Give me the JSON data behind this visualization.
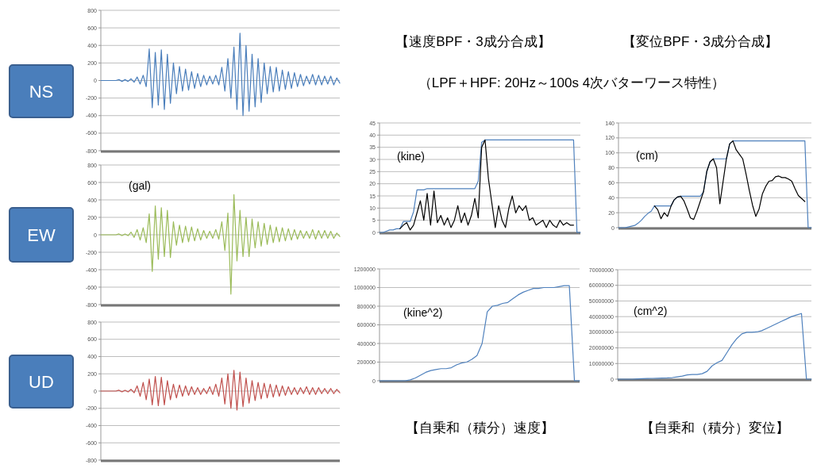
{
  "chart_data": [
    {
      "type": "line",
      "title": "NS",
      "categories": [
        null,
        null,
        null,
        null,
        null,
        null,
        null,
        null,
        null,
        null,
        null,
        null,
        null,
        null,
        null,
        null,
        null,
        null,
        null,
        null,
        null,
        null,
        null,
        null,
        null,
        null,
        null,
        null,
        null,
        null,
        null,
        null,
        null,
        null,
        null,
        null,
        null,
        null,
        null,
        null,
        null,
        null,
        null,
        null,
        null,
        null,
        null,
        null,
        null,
        null,
        null,
        null,
        null,
        null,
        null,
        null,
        null,
        null,
        null,
        null,
        null,
        null,
        null,
        null,
        null,
        null,
        null,
        null,
        null,
        null,
        null,
        null,
        null,
        null,
        null,
        null,
        null,
        null,
        null,
        null
      ],
      "ylim": [
        -800,
        800
      ],
      "yticks": [
        -800,
        -600,
        -400,
        -200,
        0,
        200,
        400,
        600,
        800
      ],
      "grid": "y",
      "tick_labels": "y",
      "series": [
        {
          "color": "#4a7ebb",
          "values": [
            0,
            0,
            0,
            0,
            0,
            0,
            10,
            -10,
            10,
            -10,
            20,
            -20,
            40,
            -40,
            60,
            -70,
            360,
            -310,
            320,
            -280,
            350,
            -330,
            300,
            -260,
            200,
            -150,
            160,
            -120,
            130,
            -110,
            100,
            -90,
            80,
            -70,
            60,
            -50,
            50,
            -40,
            60,
            -50,
            150,
            -120,
            250,
            -200,
            380,
            -330,
            540,
            -400,
            400,
            -350,
            300,
            -300,
            250,
            -250,
            200,
            -150,
            160,
            -130,
            150,
            -120,
            120,
            -100,
            100,
            -90,
            90,
            -70,
            70,
            -60,
            50,
            -40,
            70,
            -50,
            60,
            -50,
            50,
            -40,
            50,
            -50,
            30,
            -30
          ]
        }
      ]
    },
    {
      "type": "line",
      "title": "EW",
      "annotations": [
        "(gal)"
      ],
      "categories": [
        null,
        null,
        null,
        null,
        null,
        null,
        null,
        null,
        null,
        null,
        null,
        null,
        null,
        null,
        null,
        null,
        null,
        null,
        null,
        null,
        null,
        null,
        null,
        null,
        null,
        null,
        null,
        null,
        null,
        null,
        null,
        null,
        null,
        null,
        null,
        null,
        null,
        null,
        null,
        null,
        null,
        null,
        null,
        null,
        null,
        null,
        null,
        null,
        null,
        null,
        null,
        null,
        null,
        null,
        null,
        null,
        null,
        null,
        null,
        null,
        null,
        null,
        null,
        null,
        null,
        null,
        null,
        null,
        null,
        null,
        null,
        null,
        null,
        null,
        null,
        null,
        null,
        null,
        null,
        null
      ],
      "ylim": [
        -800,
        800
      ],
      "yticks": [
        -800,
        -600,
        -400,
        -200,
        0,
        200,
        400,
        600,
        800
      ],
      "grid": "y",
      "tick_labels": "y",
      "series": [
        {
          "color": "#9bbb59",
          "values": [
            0,
            0,
            0,
            0,
            0,
            0,
            10,
            -10,
            10,
            -10,
            30,
            -30,
            60,
            -60,
            80,
            -90,
            240,
            -420,
            330,
            -280,
            310,
            -250,
            280,
            -260,
            150,
            -120,
            110,
            -90,
            100,
            -80,
            90,
            -70,
            70,
            -60,
            50,
            -40,
            40,
            -40,
            60,
            -50,
            150,
            -180,
            250,
            -680,
            460,
            -300,
            280,
            -250,
            200,
            -250,
            180,
            -150,
            150,
            -130,
            130,
            -110,
            110,
            -90,
            90,
            -80,
            80,
            -70,
            70,
            -60,
            60,
            -50,
            50,
            -40,
            40,
            -40,
            60,
            -50,
            50,
            -40,
            50,
            -40,
            40,
            -40,
            20,
            -20
          ]
        }
      ]
    },
    {
      "type": "line",
      "title": "UD",
      "categories": [
        null,
        null,
        null,
        null,
        null,
        null,
        null,
        null,
        null,
        null,
        null,
        null,
        null,
        null,
        null,
        null,
        null,
        null,
        null,
        null,
        null,
        null,
        null,
        null,
        null,
        null,
        null,
        null,
        null,
        null,
        null,
        null,
        null,
        null,
        null,
        null,
        null,
        null,
        null,
        null,
        null,
        null,
        null,
        null,
        null,
        null,
        null,
        null,
        null,
        null,
        null,
        null,
        null,
        null,
        null,
        null,
        null,
        null,
        null,
        null,
        null,
        null,
        null,
        null,
        null,
        null,
        null,
        null,
        null,
        null,
        null,
        null,
        null,
        null,
        null,
        null,
        null,
        null,
        null,
        null
      ],
      "ylim": [
        -800,
        800
      ],
      "yticks": [
        -800,
        -600,
        -400,
        -200,
        0,
        200,
        400,
        600,
        800
      ],
      "grid": "y",
      "tick_labels": "y",
      "series": [
        {
          "color": "#c0504d",
          "values": [
            0,
            0,
            0,
            0,
            0,
            0,
            10,
            -10,
            10,
            -10,
            20,
            -20,
            60,
            -60,
            100,
            -100,
            140,
            -160,
            170,
            -170,
            160,
            -160,
            120,
            -100,
            80,
            -80,
            70,
            -60,
            60,
            -50,
            50,
            -40,
            40,
            -40,
            30,
            -30,
            50,
            -40,
            80,
            -60,
            150,
            -150,
            200,
            -200,
            240,
            -220,
            220,
            -180,
            150,
            -140,
            120,
            -110,
            100,
            -90,
            90,
            -80,
            80,
            -70,
            70,
            -60,
            60,
            -50,
            50,
            -40,
            40,
            -40,
            40,
            -30,
            50,
            -40,
            40,
            -40,
            40,
            -30,
            30,
            -30,
            30,
            -30,
            20,
            -20
          ]
        }
      ]
    },
    {
      "type": "line",
      "title": "【速度BPF・3成分合成】",
      "subtitle": "（LPF＋HPF: 20Hz～100s 4次バターワース特性）",
      "annotations": [
        "(kine)"
      ],
      "categories": [
        null,
        null,
        null,
        null,
        null,
        null,
        null,
        null,
        null,
        null,
        null,
        null,
        null,
        null,
        null,
        null,
        null,
        null,
        null,
        null,
        null,
        null,
        null,
        null,
        null,
        null,
        null,
        null,
        null,
        null,
        null,
        null,
        null,
        null,
        null,
        null,
        null,
        null,
        null,
        null,
        null,
        null,
        null,
        null,
        null,
        null,
        null,
        null,
        null,
        null,
        null,
        null,
        null,
        null,
        null,
        null,
        null,
        null,
        null,
        null
      ],
      "ylim": [
        0,
        45
      ],
      "yticks": [
        0,
        5,
        10,
        15,
        20,
        25,
        30,
        35,
        40,
        45
      ],
      "grid": "y",
      "tick_labels": "y",
      "series": [
        {
          "color": "#4f81bd",
          "values": [
            0,
            0,
            0.5,
            1,
            1,
            1.5,
            1.5,
            4.5,
            4.5,
            4.5,
            8.5,
            17.5,
            17.5,
            17.5,
            18,
            18,
            18,
            18,
            18,
            18,
            18,
            18,
            18,
            18,
            18,
            18,
            18,
            18,
            18,
            21,
            37,
            38,
            38,
            38,
            38,
            38,
            38,
            38,
            38,
            38,
            38,
            38,
            38,
            38,
            38,
            38,
            38,
            38,
            38,
            38,
            38,
            38,
            38,
            38,
            38,
            38,
            38,
            38,
            0,
            0
          ]
        },
        {
          "color": "#000000",
          "values": [
            null,
            null,
            null,
            null,
            null,
            null,
            1.5,
            3,
            4,
            1,
            3,
            8,
            13,
            5,
            16,
            3,
            17,
            4,
            7,
            3,
            6,
            2,
            5,
            11,
            4,
            8,
            3,
            7,
            14,
            6,
            35,
            38,
            22,
            12,
            2,
            11,
            5,
            2,
            10,
            15,
            8,
            11,
            9,
            11,
            5,
            6,
            3,
            4,
            5,
            2,
            5,
            3,
            2,
            5,
            3,
            4,
            3,
            3,
            null,
            null
          ]
        }
      ]
    },
    {
      "type": "line",
      "title": "【変位BPF・3成分合成】",
      "annotations": [
        "(cm)"
      ],
      "categories": [
        null,
        null,
        null,
        null,
        null,
        null,
        null,
        null,
        null,
        null,
        null,
        null,
        null,
        null,
        null,
        null,
        null,
        null,
        null,
        null,
        null,
        null,
        null,
        null,
        null,
        null,
        null,
        null,
        null,
        null,
        null,
        null,
        null,
        null,
        null,
        null,
        null,
        null,
        null,
        null,
        null,
        null,
        null,
        null,
        null,
        null,
        null,
        null,
        null,
        null,
        null,
        null,
        null,
        null,
        null,
        null,
        null,
        null,
        null,
        null
      ],
      "ylim": [
        0,
        140
      ],
      "yticks": [
        0,
        20,
        40,
        60,
        80,
        100,
        120,
        140
      ],
      "grid": "y",
      "tick_labels": "y",
      "series": [
        {
          "color": "#4f81bd",
          "values": [
            0,
            0,
            0,
            1,
            2,
            3,
            6,
            10,
            15,
            19,
            22,
            29,
            29,
            29,
            29,
            29,
            29,
            37,
            41,
            42,
            42,
            42,
            42,
            42,
            42,
            42,
            48,
            75,
            88,
            92,
            92,
            92,
            92,
            92,
            112,
            116,
            116,
            116,
            116,
            116,
            116,
            116,
            116,
            116,
            116,
            116,
            116,
            116,
            116,
            116,
            116,
            116,
            116,
            116,
            116,
            116,
            116,
            116,
            0,
            0
          ]
        },
        {
          "color": "#000000",
          "values": [
            null,
            null,
            null,
            null,
            null,
            null,
            null,
            null,
            null,
            null,
            null,
            29,
            24,
            12,
            20,
            15,
            28,
            37,
            41,
            42,
            36,
            25,
            13,
            11,
            22,
            35,
            48,
            75,
            88,
            92,
            80,
            32,
            62,
            92,
            112,
            116,
            104,
            98,
            92,
            72,
            50,
            30,
            15,
            25,
            45,
            55,
            62,
            63,
            68,
            69,
            67,
            67,
            65,
            62,
            52,
            43,
            39,
            35,
            null,
            null
          ]
        }
      ]
    },
    {
      "type": "line",
      "annotations": [
        "(kine^2)",
        "【自乗和（積分）速度】"
      ],
      "categories": [
        null,
        null,
        null,
        null,
        null,
        null,
        null,
        null,
        null,
        null,
        null,
        null,
        null,
        null,
        null,
        null,
        null,
        null,
        null,
        null,
        null,
        null,
        null,
        null,
        null,
        null,
        null,
        null,
        null,
        null,
        null,
        null,
        null,
        null,
        null,
        null,
        null,
        null,
        null,
        null
      ],
      "ylim": [
        0,
        1200000
      ],
      "yticks": [
        0,
        200000,
        400000,
        600000,
        800000,
        1000000,
        1200000
      ],
      "grid": "y",
      "tick_labels": "y",
      "series": [
        {
          "color": "#4f81bd",
          "values": [
            0,
            0,
            0,
            0,
            0,
            0,
            10000,
            30000,
            60000,
            90000,
            110000,
            120000,
            130000,
            130000,
            140000,
            170000,
            190000,
            200000,
            230000,
            270000,
            400000,
            740000,
            800000,
            810000,
            830000,
            840000,
            880000,
            920000,
            950000,
            970000,
            990000,
            990000,
            1000000,
            1000000,
            1000000,
            1010000,
            1020000,
            1020000,
            0,
            0
          ]
        }
      ]
    },
    {
      "type": "line",
      "annotations": [
        "(cm^2)",
        "【自乗和（積分）変位】"
      ],
      "categories": [
        null,
        null,
        null,
        null,
        null,
        null,
        null,
        null,
        null,
        null,
        null,
        null,
        null,
        null,
        null,
        null,
        null,
        null,
        null,
        null,
        null,
        null,
        null,
        null,
        null,
        null,
        null,
        null,
        null,
        null,
        null,
        null,
        null,
        null,
        null,
        null,
        null,
        null,
        null,
        null
      ],
      "ylim": [
        0,
        70000000
      ],
      "yticks": [
        0,
        10000000,
        20000000,
        30000000,
        40000000,
        50000000,
        60000000,
        70000000
      ],
      "grid": "y",
      "tick_labels": "y",
      "series": [
        {
          "color": "#4f81bd",
          "values": [
            0,
            0,
            0,
            0,
            200000,
            300000,
            400000,
            500000,
            600000,
            700000,
            800000,
            1000000,
            1500000,
            2000000,
            2700000,
            3000000,
            3000000,
            3500000,
            5000000,
            8500000,
            10500000,
            12000000,
            17000000,
            22000000,
            26000000,
            29000000,
            30000000,
            30000000,
            30200000,
            31000000,
            32500000,
            34000000,
            35500000,
            37000000,
            38500000,
            40000000,
            41000000,
            42000000,
            0,
            0
          ]
        }
      ]
    }
  ]
}
